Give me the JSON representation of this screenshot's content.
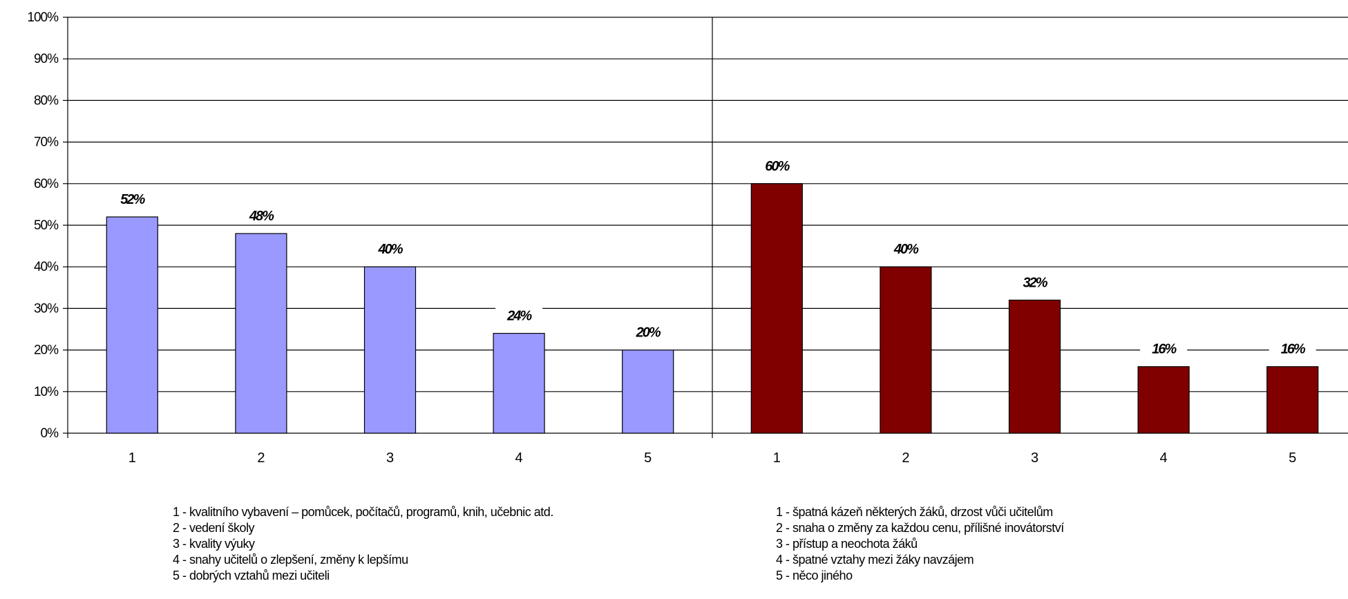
{
  "chart_data": {
    "type": "bar",
    "ylim": [
      0,
      100
    ],
    "y_ticks": [
      "0%",
      "10%",
      "20%",
      "30%",
      "40%",
      "50%",
      "60%",
      "70%",
      "80%",
      "90%",
      "100%"
    ],
    "grid": true,
    "groups": [
      {
        "categories": [
          "1",
          "2",
          "3",
          "4",
          "5"
        ],
        "values": [
          52,
          48,
          40,
          24,
          20
        ],
        "labels": [
          "52%",
          "48%",
          "40%",
          "24%",
          "20%"
        ],
        "color": "#9999ff",
        "legend": [
          "1 - kvalitního vybavení – pomůcek, počítačů, programů, knih, učebnic atd.",
          "2 - vedení školy",
          "3 - kvality výuky",
          "4 - snahy učitelů o zlepšení, změny k lepšímu",
          "5 - dobrých vztahů mezi učiteli"
        ]
      },
      {
        "categories": [
          "1",
          "2",
          "3",
          "4",
          "5"
        ],
        "values": [
          60,
          40,
          32,
          16,
          16
        ],
        "labels": [
          "60%",
          "40%",
          "32%",
          "16%",
          "16%"
        ],
        "color": "#800000",
        "legend": [
          "1 - špatná kázeň některých žáků, drzost vůči učitelům",
          "2 - snaha o změny za každou cenu, přílišné inovátorství",
          "3 - přístup a neochota žáků",
          "4 - špatné vztahy mezi žáky navzájem",
          "5 - něco jiného"
        ]
      }
    ]
  }
}
